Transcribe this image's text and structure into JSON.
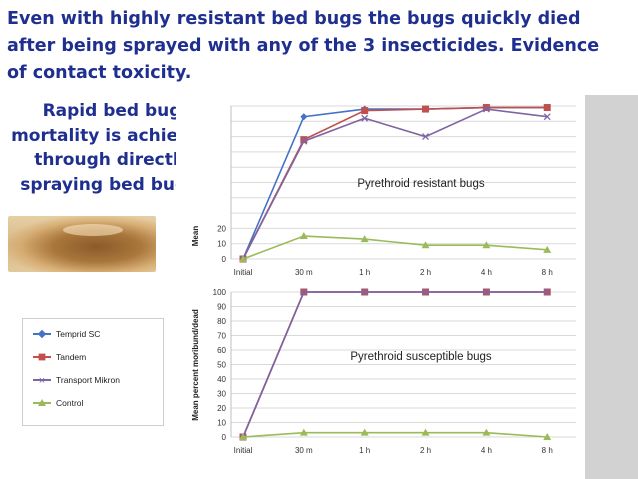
{
  "headline": {
    "line1": "Even with highly resistant bed bugs the bugs quickly died",
    "line2": "after being sprayed with any of the 3 insecticides. Evidence",
    "line3": "of contact toxicity."
  },
  "subhead": {
    "line1": "Rapid bed bug",
    "line2": "mortality is achieved",
    "line3": "through directly",
    "line4": "spraying bed bugs."
  },
  "legend": [
    {
      "name": "Temprid SC",
      "color": "#4472c4",
      "marker": "diamond"
    },
    {
      "name": "Tandem",
      "color": "#c0504d",
      "marker": "square"
    },
    {
      "name": "Transport Mikron",
      "color": "#8064a2",
      "marker": "x"
    },
    {
      "name": "Control",
      "color": "#9bbb59",
      "marker": "triangle"
    }
  ],
  "chart_data": [
    {
      "type": "line",
      "annotation": "Pyrethroid resistant bugs",
      "ylabel": "Mean",
      "categories": [
        "Initial",
        "30 m",
        "1 h",
        "2 h",
        "4 h",
        "8 h"
      ],
      "yticks": [
        0,
        10,
        20
      ],
      "ylim": [
        0,
        100
      ],
      "grid": true,
      "series": [
        {
          "name": "Temprid SC",
          "values": [
            0,
            93,
            98,
            98,
            99,
            99
          ]
        },
        {
          "name": "Tandem",
          "values": [
            0,
            78,
            97,
            98,
            99,
            99
          ]
        },
        {
          "name": "Transport Mikron",
          "values": [
            0,
            77,
            92,
            80,
            98,
            93
          ]
        },
        {
          "name": "Control",
          "values": [
            0,
            15,
            13,
            9,
            9,
            6
          ]
        }
      ]
    },
    {
      "type": "line",
      "annotation": "Pyrethroid susceptible bugs",
      "ylabel": "Mean percent moribund/dead",
      "categories": [
        "Initial",
        "30 m",
        "1 h",
        "2 h",
        "4 h",
        "8 h"
      ],
      "yticks": [
        0,
        10,
        20,
        30,
        40,
        50,
        60,
        70,
        80,
        90,
        100
      ],
      "ylim": [
        0,
        100
      ],
      "grid": true,
      "series": [
        {
          "name": "Temprid SC",
          "values": [
            0,
            100,
            100,
            100,
            100,
            100
          ]
        },
        {
          "name": "Tandem",
          "values": [
            0,
            100,
            100,
            100,
            100,
            100
          ]
        },
        {
          "name": "Transport Mikron",
          "values": [
            0,
            100,
            100,
            100,
            100,
            100
          ]
        },
        {
          "name": "Control",
          "values": [
            0,
            3,
            3,
            3,
            3,
            0
          ]
        }
      ]
    }
  ]
}
